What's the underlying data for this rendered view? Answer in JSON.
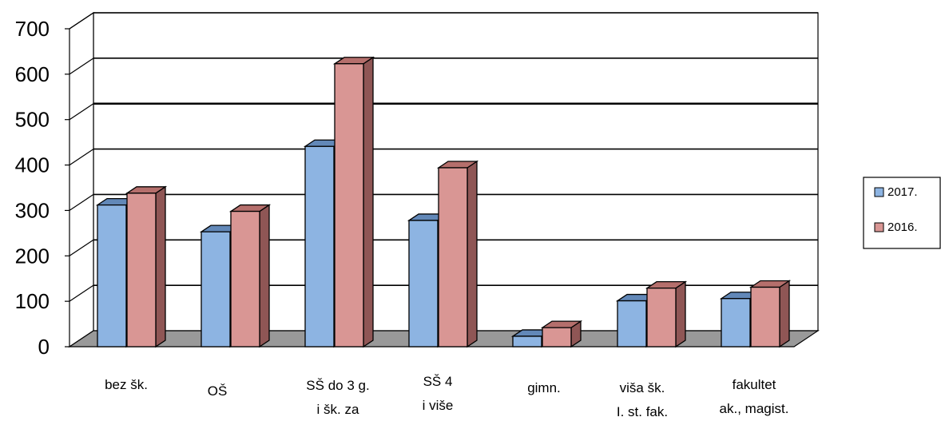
{
  "chart_data": {
    "type": "bar",
    "title": "",
    "xlabel": "",
    "ylabel": "",
    "ylim": [
      0,
      700
    ],
    "yticks": [
      0,
      100,
      200,
      300,
      400,
      500,
      600,
      700
    ],
    "grid": true,
    "legend_position": "right",
    "categories": [
      [
        "bez šk."
      ],
      [
        "OŠ"
      ],
      [
        "SŠ do 3 g.",
        "i šk. za"
      ],
      [
        "SŠ 4",
        "i više"
      ],
      [
        "gimn."
      ],
      [
        "viša šk.",
        "I. st. fak."
      ],
      [
        "fakultet",
        "ak., magist."
      ]
    ],
    "series": [
      {
        "name": "2017.",
        "color": "#8db4e2",
        "top_color": "#6288b8",
        "side_color": "#4f6f95",
        "values": [
          312,
          253,
          441,
          278,
          23,
          101,
          106
        ]
      },
      {
        "name": "2016.",
        "color": "#d99694",
        "top_color": "#b56f6c",
        "side_color": "#8f5655",
        "values": [
          338,
          298,
          623,
          394,
          42,
          129,
          131
        ]
      }
    ]
  }
}
